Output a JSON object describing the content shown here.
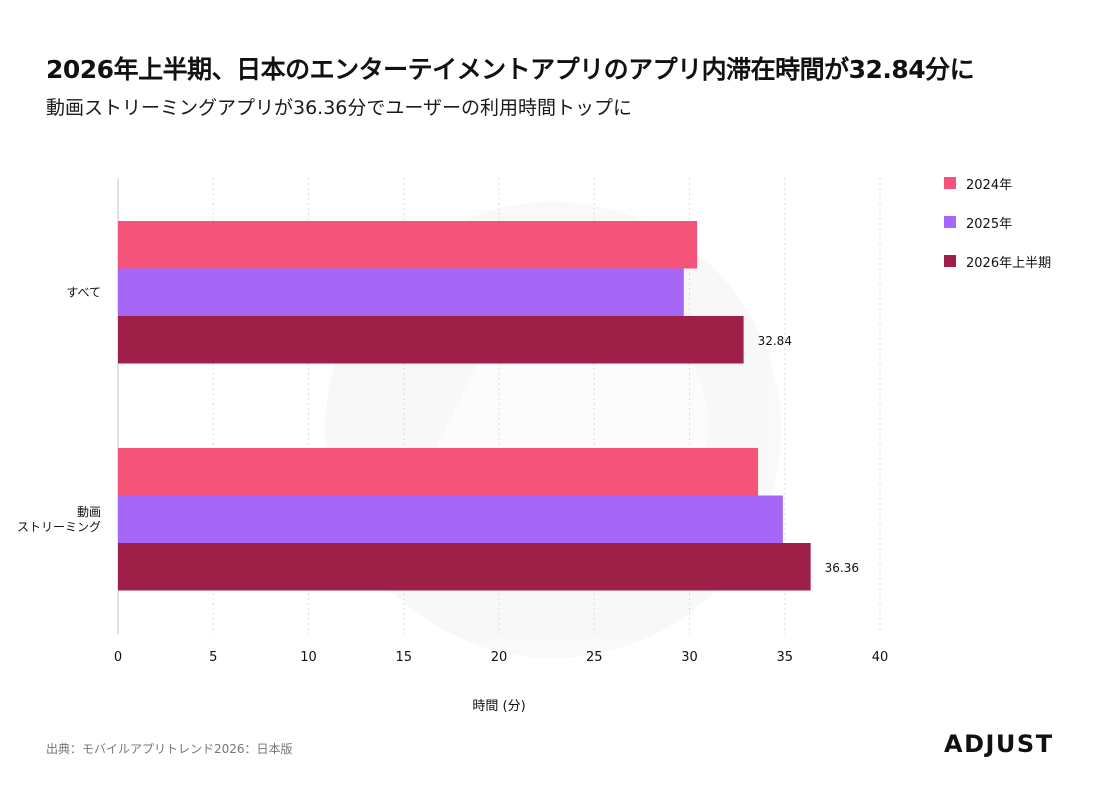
{
  "header": {
    "title": "2026年上半期、日本のエンターテイメントアプリのアプリ内滞在時間が32.84分に",
    "subtitle": "動画ストリーミングアプリが36.36分でユーザーの利用時間トップに"
  },
  "chart_data": {
    "type": "bar",
    "orientation": "horizontal",
    "categories": [
      {
        "lines": [
          "すべて"
        ]
      },
      {
        "lines": [
          "動画",
          "ストリーミング"
        ]
      }
    ],
    "series": [
      {
        "name": "2024年",
        "color": "#f4537a",
        "values": [
          30.4,
          33.6
        ]
      },
      {
        "name": "2025年",
        "color": "#a667f8",
        "values": [
          29.7,
          34.9
        ]
      },
      {
        "name": "2026年上半期",
        "color": "#9e2048",
        "values": [
          32.84,
          36.36
        ]
      }
    ],
    "data_labels": {
      "series": "2026年上半期",
      "values": [
        "32.84",
        "36.36"
      ]
    },
    "xlabel": "時間 (分)",
    "xlim": [
      0,
      40
    ],
    "xticks": [
      0,
      5,
      10,
      15,
      20,
      25,
      30,
      35,
      40
    ],
    "grid": "vertical-dotted",
    "legend_position": "right"
  },
  "footer": {
    "source": "出典：モバイルアプリトレンド2026：日本版",
    "logo_text": "ADJUST"
  }
}
